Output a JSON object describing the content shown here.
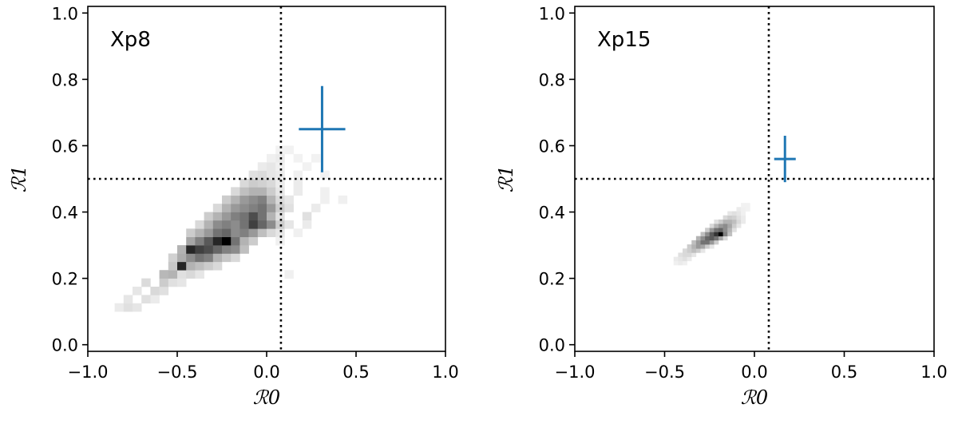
{
  "chart_data": [
    {
      "type": "heatmap",
      "title": "Xp8",
      "xlabel": "ℛ0",
      "ylabel": "ℛ1",
      "xlim": [
        -1.0,
        1.0
      ],
      "ylim": [
        -0.02,
        1.02
      ],
      "xticks": [
        "−1.0",
        "−0.5",
        "0.0",
        "0.5",
        "1.0"
      ],
      "yticks": [
        "0.0",
        "0.2",
        "0.4",
        "0.6",
        "0.8",
        "1.0"
      ],
      "xtick_values": [
        -1.0,
        -0.5,
        0.0,
        0.5,
        1.0
      ],
      "ytick_values": [
        0.0,
        0.2,
        0.4,
        0.6,
        0.8,
        1.0
      ],
      "threshold_x": 0.08,
      "threshold_y": 0.5,
      "grid": false,
      "bin_width": 0.05,
      "bin_height": 0.025,
      "cells": [
        [
          -0.85,
          0.1,
          0.08
        ],
        [
          -0.8,
          0.1,
          0.12
        ],
        [
          -0.75,
          0.1,
          0.1
        ],
        [
          -0.8,
          0.125,
          0.1
        ],
        [
          -0.7,
          0.125,
          0.12
        ],
        [
          -0.65,
          0.125,
          0.08
        ],
        [
          -0.75,
          0.15,
          0.1
        ],
        [
          -0.65,
          0.15,
          0.15
        ],
        [
          -0.6,
          0.15,
          0.12
        ],
        [
          -0.7,
          0.175,
          0.14
        ],
        [
          -0.6,
          0.175,
          0.2
        ],
        [
          -0.55,
          0.175,
          0.12
        ],
        [
          -0.5,
          0.175,
          0.1
        ],
        [
          -0.6,
          0.2,
          0.28
        ],
        [
          -0.55,
          0.2,
          0.3
        ],
        [
          -0.5,
          0.2,
          0.12
        ],
        [
          -0.45,
          0.2,
          0.15
        ],
        [
          -0.4,
          0.2,
          0.1
        ],
        [
          -0.55,
          0.225,
          0.22
        ],
        [
          -0.5,
          0.225,
          0.85
        ],
        [
          -0.45,
          0.225,
          0.3
        ],
        [
          -0.4,
          0.225,
          0.25
        ],
        [
          -0.35,
          0.225,
          0.2
        ],
        [
          -0.3,
          0.225,
          0.15
        ],
        [
          -0.55,
          0.25,
          0.18
        ],
        [
          -0.5,
          0.25,
          0.32
        ],
        [
          -0.45,
          0.25,
          0.45
        ],
        [
          -0.4,
          0.25,
          0.55
        ],
        [
          -0.35,
          0.25,
          0.5
        ],
        [
          -0.3,
          0.25,
          0.3
        ],
        [
          -0.25,
          0.25,
          0.22
        ],
        [
          -0.2,
          0.25,
          0.15
        ],
        [
          -0.5,
          0.275,
          0.3
        ],
        [
          -0.45,
          0.275,
          0.85
        ],
        [
          -0.4,
          0.275,
          0.75
        ],
        [
          -0.35,
          0.275,
          0.7
        ],
        [
          -0.3,
          0.275,
          0.6
        ],
        [
          -0.25,
          0.275,
          0.5
        ],
        [
          -0.2,
          0.275,
          0.45
        ],
        [
          -0.15,
          0.275,
          0.25
        ],
        [
          -0.45,
          0.3,
          0.35
        ],
        [
          -0.4,
          0.3,
          0.5
        ],
        [
          -0.35,
          0.3,
          0.65
        ],
        [
          -0.3,
          0.3,
          0.85
        ],
        [
          -0.25,
          0.3,
          1.0
        ],
        [
          -0.2,
          0.3,
          0.55
        ],
        [
          -0.15,
          0.3,
          0.3
        ],
        [
          -0.1,
          0.3,
          0.2
        ],
        [
          -0.45,
          0.325,
          0.2
        ],
        [
          -0.4,
          0.325,
          0.3
        ],
        [
          -0.35,
          0.325,
          0.4
        ],
        [
          -0.3,
          0.325,
          0.55
        ],
        [
          -0.25,
          0.325,
          0.6
        ],
        [
          -0.2,
          0.325,
          0.45
        ],
        [
          -0.15,
          0.325,
          0.5
        ],
        [
          -0.1,
          0.325,
          0.4
        ],
        [
          -0.05,
          0.325,
          0.25
        ],
        [
          0.0,
          0.325,
          0.15
        ],
        [
          0.05,
          0.325,
          0.1
        ],
        [
          -0.4,
          0.35,
          0.15
        ],
        [
          -0.35,
          0.35,
          0.3
        ],
        [
          -0.3,
          0.35,
          0.45
        ],
        [
          -0.25,
          0.35,
          0.5
        ],
        [
          -0.2,
          0.35,
          0.45
        ],
        [
          -0.15,
          0.35,
          0.55
        ],
        [
          -0.1,
          0.35,
          0.75
        ],
        [
          -0.05,
          0.35,
          0.6
        ],
        [
          0.0,
          0.35,
          0.45
        ],
        [
          0.05,
          0.35,
          0.2
        ],
        [
          0.1,
          0.35,
          0.1
        ],
        [
          -0.35,
          0.375,
          0.2
        ],
        [
          -0.3,
          0.375,
          0.3
        ],
        [
          -0.25,
          0.375,
          0.4
        ],
        [
          -0.2,
          0.375,
          0.5
        ],
        [
          -0.15,
          0.375,
          0.55
        ],
        [
          -0.1,
          0.375,
          0.7
        ],
        [
          -0.05,
          0.375,
          0.55
        ],
        [
          0.0,
          0.375,
          0.3
        ],
        [
          0.05,
          0.375,
          0.12
        ],
        [
          0.2,
          0.375,
          0.12
        ],
        [
          -0.3,
          0.4,
          0.15
        ],
        [
          -0.25,
          0.4,
          0.3
        ],
        [
          -0.2,
          0.4,
          0.4
        ],
        [
          -0.15,
          0.4,
          0.45
        ],
        [
          -0.1,
          0.4,
          0.5
        ],
        [
          -0.05,
          0.4,
          0.55
        ],
        [
          0.0,
          0.4,
          0.4
        ],
        [
          0.05,
          0.4,
          0.2
        ],
        [
          0.1,
          0.4,
          0.12
        ],
        [
          0.25,
          0.4,
          0.08
        ],
        [
          -0.25,
          0.425,
          0.2
        ],
        [
          -0.2,
          0.425,
          0.3
        ],
        [
          -0.15,
          0.425,
          0.4
        ],
        [
          -0.1,
          0.425,
          0.45
        ],
        [
          -0.05,
          0.425,
          0.5
        ],
        [
          0.0,
          0.425,
          0.3
        ],
        [
          0.05,
          0.425,
          0.15
        ],
        [
          0.1,
          0.425,
          0.1
        ],
        [
          0.3,
          0.425,
          0.06
        ],
        [
          0.4,
          0.425,
          0.06
        ],
        [
          -0.2,
          0.45,
          0.15
        ],
        [
          -0.15,
          0.45,
          0.25
        ],
        [
          -0.1,
          0.45,
          0.3
        ],
        [
          -0.05,
          0.45,
          0.3
        ],
        [
          0.0,
          0.45,
          0.2
        ],
        [
          0.05,
          0.45,
          0.1
        ],
        [
          0.15,
          0.45,
          0.08
        ],
        [
          0.3,
          0.45,
          0.06
        ],
        [
          -0.15,
          0.475,
          0.15
        ],
        [
          -0.1,
          0.475,
          0.2
        ],
        [
          -0.05,
          0.475,
          0.18
        ],
        [
          0.0,
          0.475,
          0.15
        ],
        [
          0.05,
          0.475,
          0.08
        ],
        [
          0.15,
          0.475,
          0.08
        ],
        [
          -0.1,
          0.5,
          0.12
        ],
        [
          -0.05,
          0.5,
          0.14
        ],
        [
          0.0,
          0.5,
          0.1
        ],
        [
          0.05,
          0.5,
          0.08
        ],
        [
          0.15,
          0.5,
          0.06
        ],
        [
          0.3,
          0.5,
          0.05
        ],
        [
          -0.05,
          0.525,
          0.08
        ],
        [
          0.0,
          0.525,
          0.1
        ],
        [
          0.05,
          0.525,
          0.06
        ],
        [
          0.2,
          0.525,
          0.05
        ],
        [
          0.0,
          0.55,
          0.06
        ],
        [
          0.05,
          0.55,
          0.08
        ],
        [
          0.15,
          0.55,
          0.05
        ],
        [
          0.25,
          0.55,
          0.05
        ],
        [
          0.05,
          0.575,
          0.05
        ],
        [
          0.1,
          0.575,
          0.05
        ],
        [
          0.2,
          0.35,
          0.08
        ],
        [
          0.15,
          0.325,
          0.06
        ],
        [
          0.05,
          0.3,
          0.06
        ],
        [
          0.1,
          0.2,
          0.06
        ]
      ],
      "series": [
        {
          "x": 0.31,
          "y": 0.65,
          "x_err_low": 0.13,
          "x_err_high": 0.13,
          "y_err_low": 0.13,
          "y_err_high": 0.13,
          "color": "#1f77b4"
        }
      ]
    },
    {
      "type": "heatmap",
      "title": "Xp15",
      "xlabel": "ℛ0",
      "ylabel": "ℛ1",
      "xlim": [
        -1.0,
        1.0
      ],
      "ylim": [
        -0.02,
        1.02
      ],
      "xticks": [
        "−1.0",
        "−0.5",
        "0.0",
        "0.5",
        "1.0"
      ],
      "yticks": [
        "0.0",
        "0.2",
        "0.4",
        "0.6",
        "0.8",
        "1.0"
      ],
      "xtick_values": [
        -1.0,
        -0.5,
        0.0,
        0.5,
        1.0
      ],
      "ytick_values": [
        0.0,
        0.2,
        0.4,
        0.6,
        0.8,
        1.0
      ],
      "threshold_x": 0.08,
      "threshold_y": 0.5,
      "grid": false,
      "bin_width": 0.025,
      "bin_height": 0.0125,
      "cells": [
        [
          -0.45,
          0.24,
          0.06
        ],
        [
          -0.425,
          0.24,
          0.08
        ],
        [
          -0.4,
          0.24,
          0.06
        ],
        [
          -0.45,
          0.2525,
          0.08
        ],
        [
          -0.425,
          0.2525,
          0.1
        ],
        [
          -0.4,
          0.2525,
          0.12
        ],
        [
          -0.375,
          0.2525,
          0.08
        ],
        [
          -0.425,
          0.265,
          0.12
        ],
        [
          -0.4,
          0.265,
          0.15
        ],
        [
          -0.375,
          0.265,
          0.15
        ],
        [
          -0.35,
          0.265,
          0.1
        ],
        [
          -0.4,
          0.2775,
          0.15
        ],
        [
          -0.375,
          0.2775,
          0.2
        ],
        [
          -0.35,
          0.2775,
          0.25
        ],
        [
          -0.325,
          0.2775,
          0.2
        ],
        [
          -0.3,
          0.2775,
          0.1
        ],
        [
          -0.375,
          0.29,
          0.2
        ],
        [
          -0.35,
          0.29,
          0.3
        ],
        [
          -0.325,
          0.29,
          0.4
        ],
        [
          -0.3,
          0.29,
          0.35
        ],
        [
          -0.275,
          0.29,
          0.2
        ],
        [
          -0.25,
          0.29,
          0.1
        ],
        [
          -0.35,
          0.3025,
          0.25
        ],
        [
          -0.325,
          0.3025,
          0.4
        ],
        [
          -0.3,
          0.3025,
          0.55
        ],
        [
          -0.275,
          0.3025,
          0.55
        ],
        [
          -0.25,
          0.3025,
          0.4
        ],
        [
          -0.225,
          0.3025,
          0.2
        ],
        [
          -0.325,
          0.315,
          0.3
        ],
        [
          -0.3,
          0.315,
          0.45
        ],
        [
          -0.275,
          0.315,
          0.6
        ],
        [
          -0.25,
          0.315,
          0.65
        ],
        [
          -0.225,
          0.315,
          0.55
        ],
        [
          -0.2,
          0.315,
          0.35
        ],
        [
          -0.175,
          0.315,
          0.15
        ],
        [
          -0.3,
          0.3275,
          0.25
        ],
        [
          -0.275,
          0.3275,
          0.45
        ],
        [
          -0.25,
          0.3275,
          0.65
        ],
        [
          -0.225,
          0.3275,
          0.8
        ],
        [
          -0.2,
          0.3275,
          1.0
        ],
        [
          -0.175,
          0.3275,
          0.5
        ],
        [
          -0.15,
          0.3275,
          0.25
        ],
        [
          -0.275,
          0.34,
          0.2
        ],
        [
          -0.25,
          0.34,
          0.4
        ],
        [
          -0.225,
          0.34,
          0.55
        ],
        [
          -0.2,
          0.34,
          0.6
        ],
        [
          -0.175,
          0.34,
          0.45
        ],
        [
          -0.15,
          0.34,
          0.3
        ],
        [
          -0.125,
          0.34,
          0.12
        ],
        [
          -0.25,
          0.3525,
          0.15
        ],
        [
          -0.225,
          0.3525,
          0.3
        ],
        [
          -0.2,
          0.3525,
          0.4
        ],
        [
          -0.175,
          0.3525,
          0.45
        ],
        [
          -0.15,
          0.3525,
          0.35
        ],
        [
          -0.125,
          0.3525,
          0.2
        ],
        [
          -0.1,
          0.3525,
          0.1
        ],
        [
          -0.225,
          0.365,
          0.12
        ],
        [
          -0.2,
          0.365,
          0.2
        ],
        [
          -0.175,
          0.365,
          0.3
        ],
        [
          -0.15,
          0.365,
          0.3
        ],
        [
          -0.125,
          0.365,
          0.25
        ],
        [
          -0.1,
          0.365,
          0.15
        ],
        [
          -0.075,
          0.365,
          0.08
        ],
        [
          -0.175,
          0.3775,
          0.15
        ],
        [
          -0.15,
          0.3775,
          0.2
        ],
        [
          -0.125,
          0.3775,
          0.18
        ],
        [
          -0.1,
          0.3775,
          0.12
        ],
        [
          -0.075,
          0.3775,
          0.08
        ],
        [
          -0.15,
          0.39,
          0.1
        ],
        [
          -0.125,
          0.39,
          0.12
        ],
        [
          -0.1,
          0.39,
          0.1
        ],
        [
          -0.075,
          0.39,
          0.06
        ],
        [
          -0.1,
          0.4025,
          0.08
        ],
        [
          -0.075,
          0.4025,
          0.06
        ],
        [
          -0.05,
          0.4025,
          0.05
        ],
        [
          -0.075,
          0.415,
          0.05
        ],
        [
          -0.05,
          0.415,
          0.05
        ]
      ],
      "series": [
        {
          "x": 0.17,
          "y": 0.56,
          "x_err_low": 0.06,
          "x_err_high": 0.06,
          "y_err_low": 0.07,
          "y_err_high": 0.07,
          "color": "#1f77b4"
        }
      ]
    }
  ]
}
